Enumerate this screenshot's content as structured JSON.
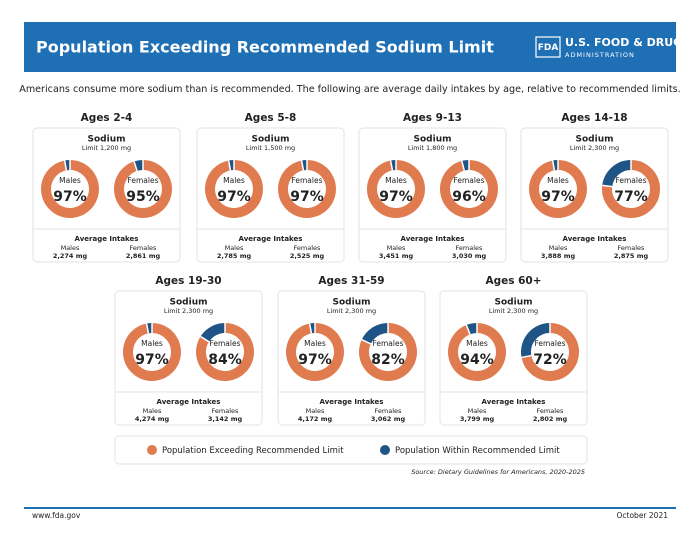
{
  "header": {
    "title": "Population Exceeding Recommended Sodium Limit",
    "logo_badge": "FDA",
    "logo_name": "U.S. FOOD & DRUG",
    "logo_sub": "ADMINISTRATION"
  },
  "intro": "Americans consume more sodium than is recommended. The following are average daily intakes by age, relative to recommended limits.",
  "legend": [
    {
      "name": "Population Exceeding Recommended Limit",
      "color": "#e07b4f"
    },
    {
      "name": "Population Within Recommended Limit",
      "color": "#1f5486"
    }
  ],
  "source": "Source: Dietary Guidelines for Americans, 2020-2025",
  "footer": {
    "left": "www.fda.gov",
    "right": "October 2021"
  },
  "chart_data": [
    {
      "type": "pie",
      "title": "Ages 2-4",
      "subtitle": "Sodium",
      "limit": "Limit 1,200 mg",
      "intake_title": "Average Intakes",
      "categories": [
        "Males",
        "Females"
      ],
      "intakes": [
        "2,274 mg",
        "2,861 mg"
      ],
      "series": [
        {
          "color": "#e07b4f",
          "values": [
            97,
            95
          ],
          "value_labels": [
            "97%",
            "95%"
          ]
        },
        {
          "color": "#1f5486",
          "values": [
            3,
            5
          ]
        }
      ]
    },
    {
      "type": "pie",
      "title": "Ages 5-8",
      "subtitle": "Sodium",
      "limit": "Limit 1,500 mg",
      "intake_title": "Average Intakes",
      "categories": [
        "Males",
        "Females"
      ],
      "intakes": [
        "2,785 mg",
        "2,525 mg"
      ],
      "series": [
        {
          "color": "#e07b4f",
          "values": [
            97,
            97
          ],
          "value_labels": [
            "97%",
            "97%"
          ]
        },
        {
          "color": "#1f5486",
          "values": [
            3,
            3
          ]
        }
      ]
    },
    {
      "type": "pie",
      "title": "Ages 9-13",
      "subtitle": "Sodium",
      "limit": "Limit 1,800 mg",
      "intake_title": "Average Intakes",
      "categories": [
        "Males",
        "Females"
      ],
      "intakes": [
        "3,451 mg",
        "3,030 mg"
      ],
      "series": [
        {
          "color": "#e07b4f",
          "values": [
            97,
            96
          ],
          "value_labels": [
            "97%",
            "96%"
          ]
        },
        {
          "color": "#1f5486",
          "values": [
            3,
            4
          ]
        }
      ]
    },
    {
      "type": "pie",
      "title": "Ages 14-18",
      "subtitle": "Sodium",
      "limit": "Limit 2,300 mg",
      "intake_title": "Average Intakes",
      "categories": [
        "Males",
        "Females"
      ],
      "intakes": [
        "3,888 mg",
        "2,875 mg"
      ],
      "series": [
        {
          "color": "#e07b4f",
          "values": [
            97,
            77
          ],
          "value_labels": [
            "97%",
            "77%"
          ]
        },
        {
          "color": "#1f5486",
          "values": [
            3,
            23
          ]
        }
      ]
    },
    {
      "type": "pie",
      "title": "Ages 19-30",
      "subtitle": "Sodium",
      "limit": "Limit 2,300 mg",
      "intake_title": "Average Intakes",
      "categories": [
        "Males",
        "Females"
      ],
      "intakes": [
        "4,274 mg",
        "3,142 mg"
      ],
      "series": [
        {
          "color": "#e07b4f",
          "values": [
            97,
            84
          ],
          "value_labels": [
            "97%",
            "84%"
          ]
        },
        {
          "color": "#1f5486",
          "values": [
            3,
            16
          ]
        }
      ]
    },
    {
      "type": "pie",
      "title": "Ages 31-59",
      "subtitle": "Sodium",
      "limit": "Limit 2,300 mg",
      "intake_title": "Average Intakes",
      "categories": [
        "Males",
        "Females"
      ],
      "intakes": [
        "4,172 mg",
        "3,062 mg"
      ],
      "series": [
        {
          "color": "#e07b4f",
          "values": [
            97,
            82
          ],
          "value_labels": [
            "97%",
            "82%"
          ]
        },
        {
          "color": "#1f5486",
          "values": [
            3,
            18
          ]
        }
      ]
    },
    {
      "type": "pie",
      "title": "Ages 60+",
      "subtitle": "Sodium",
      "limit": "Limit 2,300 mg",
      "intake_title": "Average Intakes",
      "categories": [
        "Males",
        "Females"
      ],
      "intakes": [
        "3,799 mg",
        "2,802 mg"
      ],
      "series": [
        {
          "color": "#e07b4f",
          "values": [
            94,
            72
          ],
          "value_labels": [
            "94%",
            "72%"
          ]
        },
        {
          "color": "#1f5486",
          "values": [
            6,
            28
          ]
        }
      ]
    }
  ]
}
